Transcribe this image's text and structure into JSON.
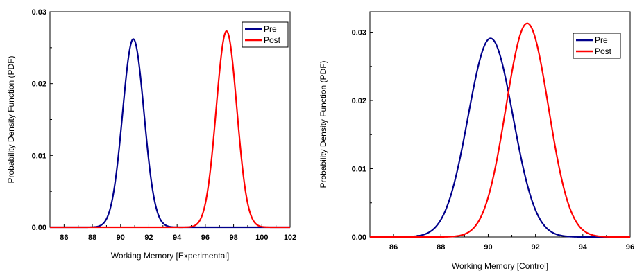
{
  "chart_data": [
    {
      "type": "line",
      "xlabel": "Working Memory [Experimental]",
      "ylabel": "Probability Density Function (PDF)",
      "xlim": [
        85,
        102
      ],
      "ylim": [
        0,
        0.03
      ],
      "xticks": [
        86,
        88,
        90,
        92,
        94,
        96,
        98,
        100,
        102
      ],
      "yticks": [
        0.0,
        0.01,
        0.02,
        0.03
      ],
      "ytick_labels": [
        "0.00",
        "0.01",
        "0.02",
        "0.03"
      ],
      "legend": "top-right",
      "grid": false,
      "series": [
        {
          "name": "Pre",
          "color": "#00008b",
          "distribution": "normal",
          "mean": 90.9,
          "sd": 0.76,
          "peak": 0.0262
        },
        {
          "name": "Post",
          "color": "#ff0000",
          "distribution": "normal",
          "mean": 97.5,
          "sd": 0.73,
          "peak": 0.0273
        }
      ]
    },
    {
      "type": "line",
      "xlabel": "Working Memory [Control]",
      "ylabel": "Probability Density Function (PDF)",
      "xlim": [
        85,
        96
      ],
      "ylim": [
        0,
        0.033
      ],
      "xticks": [
        86,
        88,
        90,
        92,
        94,
        96
      ],
      "yticks": [
        0.0,
        0.01,
        0.02,
        0.03
      ],
      "ytick_labels": [
        "0.00",
        "0.01",
        "0.02",
        "0.03"
      ],
      "legend": "top-right",
      "grid": false,
      "series": [
        {
          "name": "Pre",
          "color": "#00008b",
          "distribution": "normal",
          "mean": 90.1,
          "sd": 0.95,
          "peak": 0.0291
        },
        {
          "name": "Post",
          "color": "#ff0000",
          "distribution": "normal",
          "mean": 91.65,
          "sd": 0.9,
          "peak": 0.0313
        }
      ]
    }
  ]
}
